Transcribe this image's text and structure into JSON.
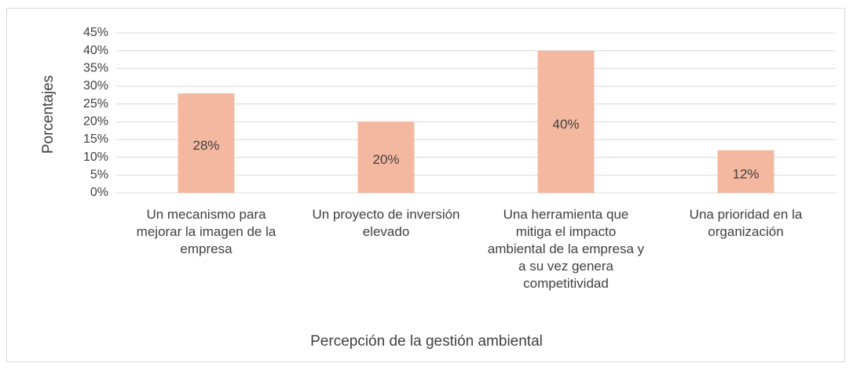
{
  "chart_data": {
    "type": "bar",
    "x_label": "Percepción de la gestión ambiental",
    "y_label": "Porcentajes",
    "categories": [
      "Un mecanismo para mejorar la imagen de la empresa",
      "Un proyecto de inversión elevado",
      "Una herramienta que mitiga el impacto ambiental de la empresa y a su vez genera competitividad",
      "Una prioridad en la organización"
    ],
    "values": [
      28,
      20,
      40,
      12
    ],
    "value_labels": [
      "28%",
      "20%",
      "40%",
      "12%"
    ],
    "color": "#f4b8a0",
    "ylim": [
      0,
      45
    ],
    "yticks": [
      {
        "value": 0,
        "label": "0%"
      },
      {
        "value": 5,
        "label": "5%"
      },
      {
        "value": 10,
        "label": "10%"
      },
      {
        "value": 15,
        "label": "15%"
      },
      {
        "value": 20,
        "label": "20%"
      },
      {
        "value": 25,
        "label": "25%"
      },
      {
        "value": 30,
        "label": "30%"
      },
      {
        "value": 35,
        "label": "35%"
      },
      {
        "value": 40,
        "label": "40%"
      },
      {
        "value": 45,
        "label": "45%"
      }
    ],
    "grid": true
  }
}
